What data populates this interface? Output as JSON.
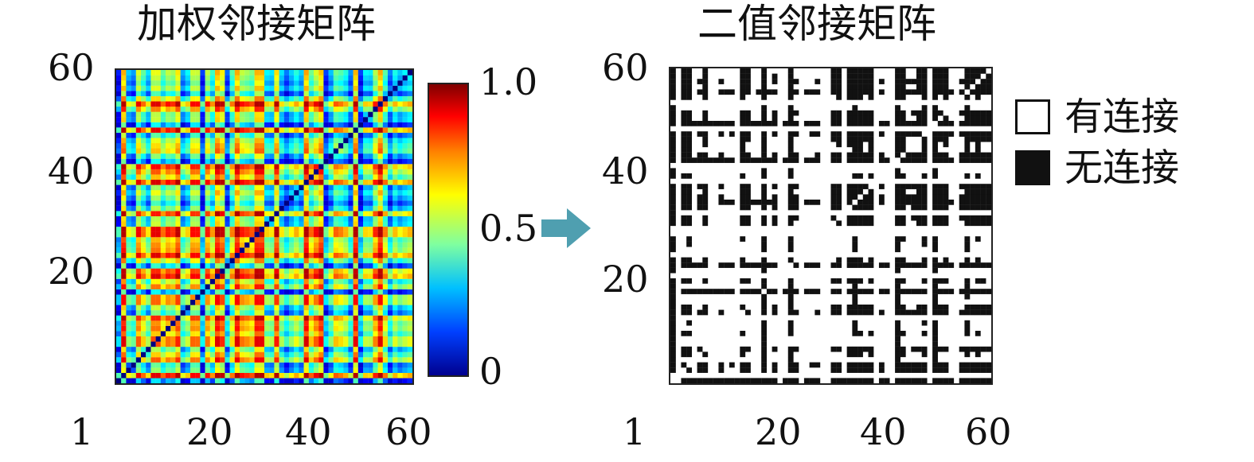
{
  "chart_data": [
    {
      "type": "heatmap",
      "title": "加权邻接矩阵",
      "size": 60,
      "x_ticks": [
        "1",
        "20",
        "40",
        "60"
      ],
      "y_ticks": [
        "20",
        "40",
        "60"
      ],
      "colorbar": {
        "ticks": [
          "0",
          "0.5",
          "1.0"
        ],
        "range": [
          0,
          1
        ],
        "colormap": "jet"
      },
      "diagonal": 0,
      "value_range": [
        0,
        1
      ]
    },
    {
      "type": "heatmap",
      "title": "二值邻接矩阵",
      "size": 60,
      "x_ticks": [
        "1",
        "20",
        "40",
        "60"
      ],
      "y_ticks": [
        "20",
        "40",
        "60"
      ],
      "binary": true,
      "legend": [
        {
          "label": "有连接",
          "color": "#ffffff"
        },
        {
          "label": "无连接",
          "color": "#111111"
        }
      ]
    }
  ],
  "arrow_color": "#4f9fb0"
}
